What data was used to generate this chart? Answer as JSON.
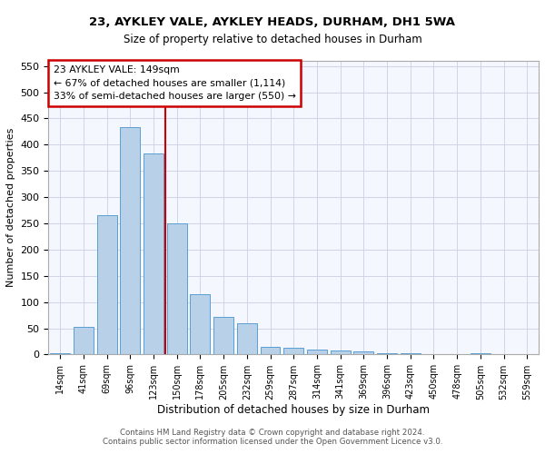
{
  "title1": "23, AYKLEY VALE, AYKLEY HEADS, DURHAM, DH1 5WA",
  "title2": "Size of property relative to detached houses in Durham",
  "xlabel": "Distribution of detached houses by size in Durham",
  "ylabel": "Number of detached properties",
  "categories": [
    "14sqm",
    "41sqm",
    "69sqm",
    "96sqm",
    "123sqm",
    "150sqm",
    "178sqm",
    "205sqm",
    "232sqm",
    "259sqm",
    "287sqm",
    "314sqm",
    "341sqm",
    "369sqm",
    "396sqm",
    "423sqm",
    "450sqm",
    "478sqm",
    "505sqm",
    "532sqm",
    "559sqm"
  ],
  "values": [
    2,
    52,
    265,
    433,
    383,
    250,
    115,
    72,
    60,
    15,
    13,
    10,
    7,
    6,
    3,
    2,
    0,
    0,
    2,
    0,
    1
  ],
  "bar_color": "#b8d0e8",
  "bar_edge_color": "#5a9fd4",
  "vline_color": "#cc0000",
  "annotation_text": "23 AYKLEY VALE: 149sqm\n← 67% of detached houses are smaller (1,114)\n33% of semi-detached houses are larger (550) →",
  "annotation_box_color": "#ffffff",
  "annotation_box_edge": "#cc0000",
  "ylim": [
    0,
    560
  ],
  "yticks": [
    0,
    50,
    100,
    150,
    200,
    250,
    300,
    350,
    400,
    450,
    500,
    550
  ],
  "footer1": "Contains HM Land Registry data © Crown copyright and database right 2024.",
  "footer2": "Contains public sector information licensed under the Open Government Licence v3.0.",
  "bg_color": "#ffffff",
  "plot_bg_color": "#f5f7ff",
  "grid_color": "#d0d4e8"
}
